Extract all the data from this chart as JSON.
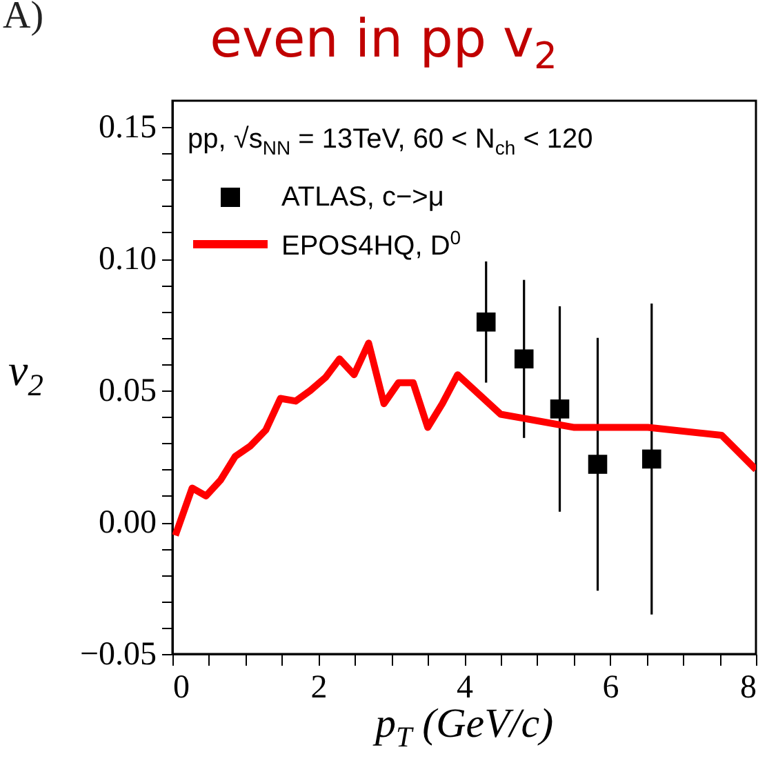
{
  "chart_data": {
    "type": "line",
    "title": "even in pp v$_{2}$",
    "xlabel": "p$_{T}$ (GeV/c)",
    "ylabel": "v$_{2}$",
    "annotations": [
      "A)",
      "pp, √s$_{NN}$ = 13TeV,  60 < N$_{ch}$ < 120"
    ],
    "xlim": [
      0,
      8
    ],
    "xticks": [
      0,
      {
        "value": 0.5,
        "label": null
      },
      {
        "value": 1,
        "label": null
      },
      {
        "value": 1.5,
        "label": null
      },
      2,
      {
        "value": 2.5,
        "label": null
      },
      {
        "value": 3,
        "label": null
      },
      {
        "value": 3.5,
        "label": null
      },
      4,
      {
        "value": 4.5,
        "label": null
      },
      {
        "value": 5,
        "label": null
      },
      {
        "value": 5.5,
        "label": null
      },
      6,
      {
        "value": 6.5,
        "label": null
      },
      {
        "value": 7,
        "label": null
      },
      {
        "value": 7.5,
        "label": null
      },
      8
    ],
    "ylim": [
      -0.05,
      0.16
    ],
    "yticks": [
      {
        "value": -0.05,
        "label": "−0.05"
      },
      {
        "value": -0.04,
        "label": null
      },
      {
        "value": -0.03,
        "label": null
      },
      {
        "value": -0.02,
        "label": null
      },
      {
        "value": -0.01,
        "label": null
      },
      {
        "value": 0,
        "label": "0.00"
      },
      {
        "value": 0.01,
        "label": null
      },
      {
        "value": 0.02,
        "label": null
      },
      {
        "value": 0.03,
        "label": null
      },
      {
        "value": 0.04,
        "label": null
      },
      {
        "value": 0.05,
        "label": "0.05"
      },
      {
        "value": 0.06,
        "label": null
      },
      {
        "value": 0.07,
        "label": null
      },
      {
        "value": 0.08,
        "label": null
      },
      {
        "value": 0.09,
        "label": null
      },
      {
        "value": 0.1,
        "label": "0.10"
      },
      {
        "value": 0.11,
        "label": null
      },
      {
        "value": 0.12,
        "label": null
      },
      {
        "value": 0.13,
        "label": null
      },
      {
        "value": 0.14,
        "label": null
      },
      {
        "value": 0.15,
        "label": "0.15"
      }
    ],
    "grid": false,
    "legend": "top left",
    "series": [
      {
        "name": "ATLAS, c−>μ",
        "type": "scatter",
        "marker": "square",
        "color": "#000000",
        "x": [
          4.3,
          4.82,
          5.31,
          5.83,
          6.57
        ],
        "values": [
          0.076,
          0.062,
          0.043,
          0.022,
          0.024
        ],
        "errors": [
          0.023,
          0.03,
          0.039,
          0.048,
          0.059
        ]
      },
      {
        "name": "EPOS4HQ, D$^{0}$",
        "type": "line",
        "color": "#ff0000",
        "x": [
          0.04,
          0.27,
          0.46,
          0.66,
          0.86,
          1.07,
          1.28,
          1.48,
          1.69,
          1.89,
          2.1,
          2.29,
          2.49,
          2.69,
          2.9,
          3.1,
          3.3,
          3.5,
          3.7,
          3.91,
          4.5,
          5.51,
          6.52,
          7.53,
          8
        ],
        "values": [
          -0.005,
          0.013,
          0.01,
          0.016,
          0.025,
          0.029,
          0.035,
          0.047,
          0.046,
          0.05,
          0.055,
          0.062,
          0.056,
          0.068,
          0.045,
          0.053,
          0.053,
          0.036,
          0.045,
          0.056,
          0.041,
          0.036,
          0.036,
          0.033,
          0.02
        ]
      }
    ]
  }
}
